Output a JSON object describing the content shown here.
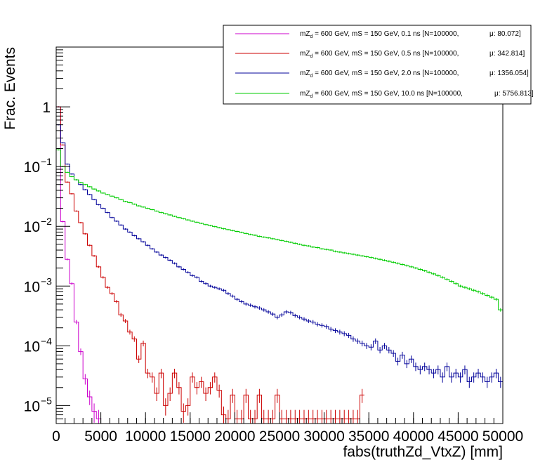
{
  "chart_data": {
    "type": "line",
    "style": "step-histogram-with-error-bars",
    "xlabel": "fabs(truthZd_VtxZ) [mm]",
    "ylabel": "Frac. Events",
    "xlim": [
      0,
      50000
    ],
    "ylim": [
      5e-06,
      10
    ],
    "yscale": "log",
    "grid": false,
    "legend_position": "top-right",
    "x_ticks": [
      {
        "value": 0,
        "label": "0"
      },
      {
        "value": 5000,
        "label": "5000"
      },
      {
        "value": 10000,
        "label": "10000"
      },
      {
        "value": 15000,
        "label": "15000"
      },
      {
        "value": 20000,
        "label": "20000"
      },
      {
        "value": 25000,
        "label": "25000"
      },
      {
        "value": 30000,
        "label": "30000"
      },
      {
        "value": 35000,
        "label": "35000"
      },
      {
        "value": 40000,
        "label": "40000"
      },
      {
        "value": 45000,
        "label": "45000"
      },
      {
        "value": 50000,
        "label": "50000"
      }
    ],
    "y_ticks": [
      {
        "value": 1e-05,
        "base": "10",
        "exp": "−5"
      },
      {
        "value": 0.0001,
        "base": "10",
        "exp": "−4"
      },
      {
        "value": 0.001,
        "base": "10",
        "exp": "−3"
      },
      {
        "value": 0.01,
        "base": "10",
        "exp": "−2"
      },
      {
        "value": 0.1,
        "base": "10",
        "exp": "−1"
      },
      {
        "value": 1,
        "base": "1",
        "exp": ""
      }
    ],
    "series": [
      {
        "label_pre": "mZ",
        "label_sub": "d",
        "label_mid": " = 600 GeV, mS = 150 GeV, 0.1 ns [N=100000,",
        "label_mu": "μ: 80.072]",
        "color": "#cc00cc",
        "bin_width": 500,
        "y": [
          1.0,
          0.012,
          0.0028,
          0.0011,
          0.00025,
          8e-05,
          2.8e-05,
          1.4e-05,
          8e-06,
          6e-06
        ]
      },
      {
        "label_pre": "mZ",
        "label_sub": "d",
        "label_mid": " = 600 GeV, mS = 150 GeV, 0.5 ns [N=100000,",
        "label_mu": "μ: 342.814]",
        "color": "#cc0000",
        "bin_width": 500,
        "y": [
          1.0,
          0.23,
          0.055,
          0.035,
          0.018,
          0.0115,
          0.0075,
          0.0048,
          0.0032,
          0.0021,
          0.0014,
          0.00095,
          0.00075,
          0.00055,
          0.00033,
          0.00026,
          0.00017,
          0.00013,
          6e-05,
          0.00011,
          3.5e-05,
          3e-05,
          1.6e-05,
          3.5e-05,
          1e-05,
          1.6e-05,
          3.5e-05,
          2e-05,
          8e-06,
          1e-05,
          3e-05,
          2e-05,
          2.5e-05,
          1.6e-05,
          2e-05,
          3e-05,
          1.8e-05,
          7e-06,
          6e-06,
          1.5e-05,
          6e-06,
          6e-06,
          1.5e-05,
          6e-06,
          6e-06,
          1.5e-05,
          6e-06,
          6e-06,
          6e-06,
          1.5e-05,
          6e-06,
          6e-06,
          6e-06,
          6e-06,
          6e-06,
          6e-06,
          6e-06,
          6e-06,
          6e-06,
          6e-06,
          6e-06,
          6e-06,
          6e-06,
          6e-06,
          6e-06,
          6e-06,
          6e-06,
          6e-06,
          1.5e-05
        ]
      },
      {
        "label_pre": "mZ",
        "label_sub": "d",
        "label_mid": " = 600 GeV, mS = 150 GeV, 2.0 ns [N=100000,",
        "label_mu": "μ: 1356.054]",
        "color": "#000099",
        "bin_width": 500,
        "y": [
          0.5,
          0.25,
          0.11,
          0.075,
          0.06,
          0.05,
          0.041,
          0.034,
          0.028,
          0.023,
          0.02,
          0.017,
          0.014,
          0.0122,
          0.0105,
          0.009,
          0.008,
          0.007,
          0.0062,
          0.0055,
          0.0048,
          0.0042,
          0.0037,
          0.0033,
          0.003,
          0.0027,
          0.0024,
          0.0021,
          0.0019,
          0.0017,
          0.0015,
          0.0014,
          0.0012,
          0.0011,
          0.001,
          0.00095,
          0.0009,
          0.00085,
          0.00075,
          0.00068,
          0.0006,
          0.00055,
          0.0005,
          0.00048,
          0.00045,
          0.00043,
          0.0004,
          0.00037,
          0.00034,
          0.0003,
          0.00033,
          0.00037,
          0.00036,
          0.00032,
          0.0003,
          0.00028,
          0.00026,
          0.00025,
          0.00023,
          0.00022,
          0.00021,
          0.00019,
          0.00018,
          0.00017,
          0.00016,
          0.00015,
          0.00013,
          0.00012,
          0.00011,
          0.0001,
          9.5e-05,
          0.00012,
          8.5e-05,
          0.0001,
          8.5e-05,
          7.5e-05,
          5.5e-05,
          7e-05,
          5e-05,
          6e-05,
          4.5e-05,
          4e-05,
          4.5e-05,
          4e-05,
          3.5e-05,
          4e-05,
          3e-05,
          4.5e-05,
          3e-05,
          3.5e-05,
          3e-05,
          4e-05,
          2.5e-05,
          3e-05,
          3.5e-05,
          3e-05,
          2.5e-05,
          3e-05,
          3.5e-05,
          2.5e-05
        ]
      },
      {
        "label_pre": "mZ",
        "label_sub": "d",
        "label_mid": " = 600 GeV, mS = 150 GeV, 10.0 ns [N=100000,",
        "label_mu": "μ: 5756.813]",
        "color": "#00cc00",
        "bin_width": 500,
        "y": [
          0.19,
          0.1,
          0.08,
          0.068,
          0.06,
          0.054,
          0.05,
          0.046,
          0.042,
          0.039,
          0.036,
          0.034,
          0.032,
          0.03,
          0.028,
          0.026,
          0.025,
          0.0235,
          0.022,
          0.021,
          0.02,
          0.019,
          0.018,
          0.017,
          0.0162,
          0.0155,
          0.0147,
          0.014,
          0.0134,
          0.0128,
          0.0122,
          0.0117,
          0.0112,
          0.0107,
          0.0103,
          0.0099,
          0.0095,
          0.0091,
          0.0088,
          0.0085,
          0.0082,
          0.0079,
          0.0076,
          0.0073,
          0.0071,
          0.0068,
          0.0066,
          0.0064,
          0.0062,
          0.006,
          0.0058,
          0.0056,
          0.0054,
          0.0052,
          0.005,
          0.0048,
          0.0047,
          0.0045,
          0.0044,
          0.0042,
          0.0041,
          0.004,
          0.0038,
          0.0037,
          0.0036,
          0.0035,
          0.0034,
          0.0033,
          0.0032,
          0.0031,
          0.003,
          0.0029,
          0.0028,
          0.0027,
          0.0026,
          0.0025,
          0.0024,
          0.0023,
          0.0022,
          0.0021,
          0.002,
          0.0019,
          0.0018,
          0.0017,
          0.0016,
          0.0015,
          0.0014,
          0.0013,
          0.0012,
          0.0011,
          0.001,
          0.00095,
          0.0009,
          0.00085,
          0.0008,
          0.00075,
          0.0007,
          0.00065,
          0.0006,
          0.0004
        ]
      }
    ]
  }
}
